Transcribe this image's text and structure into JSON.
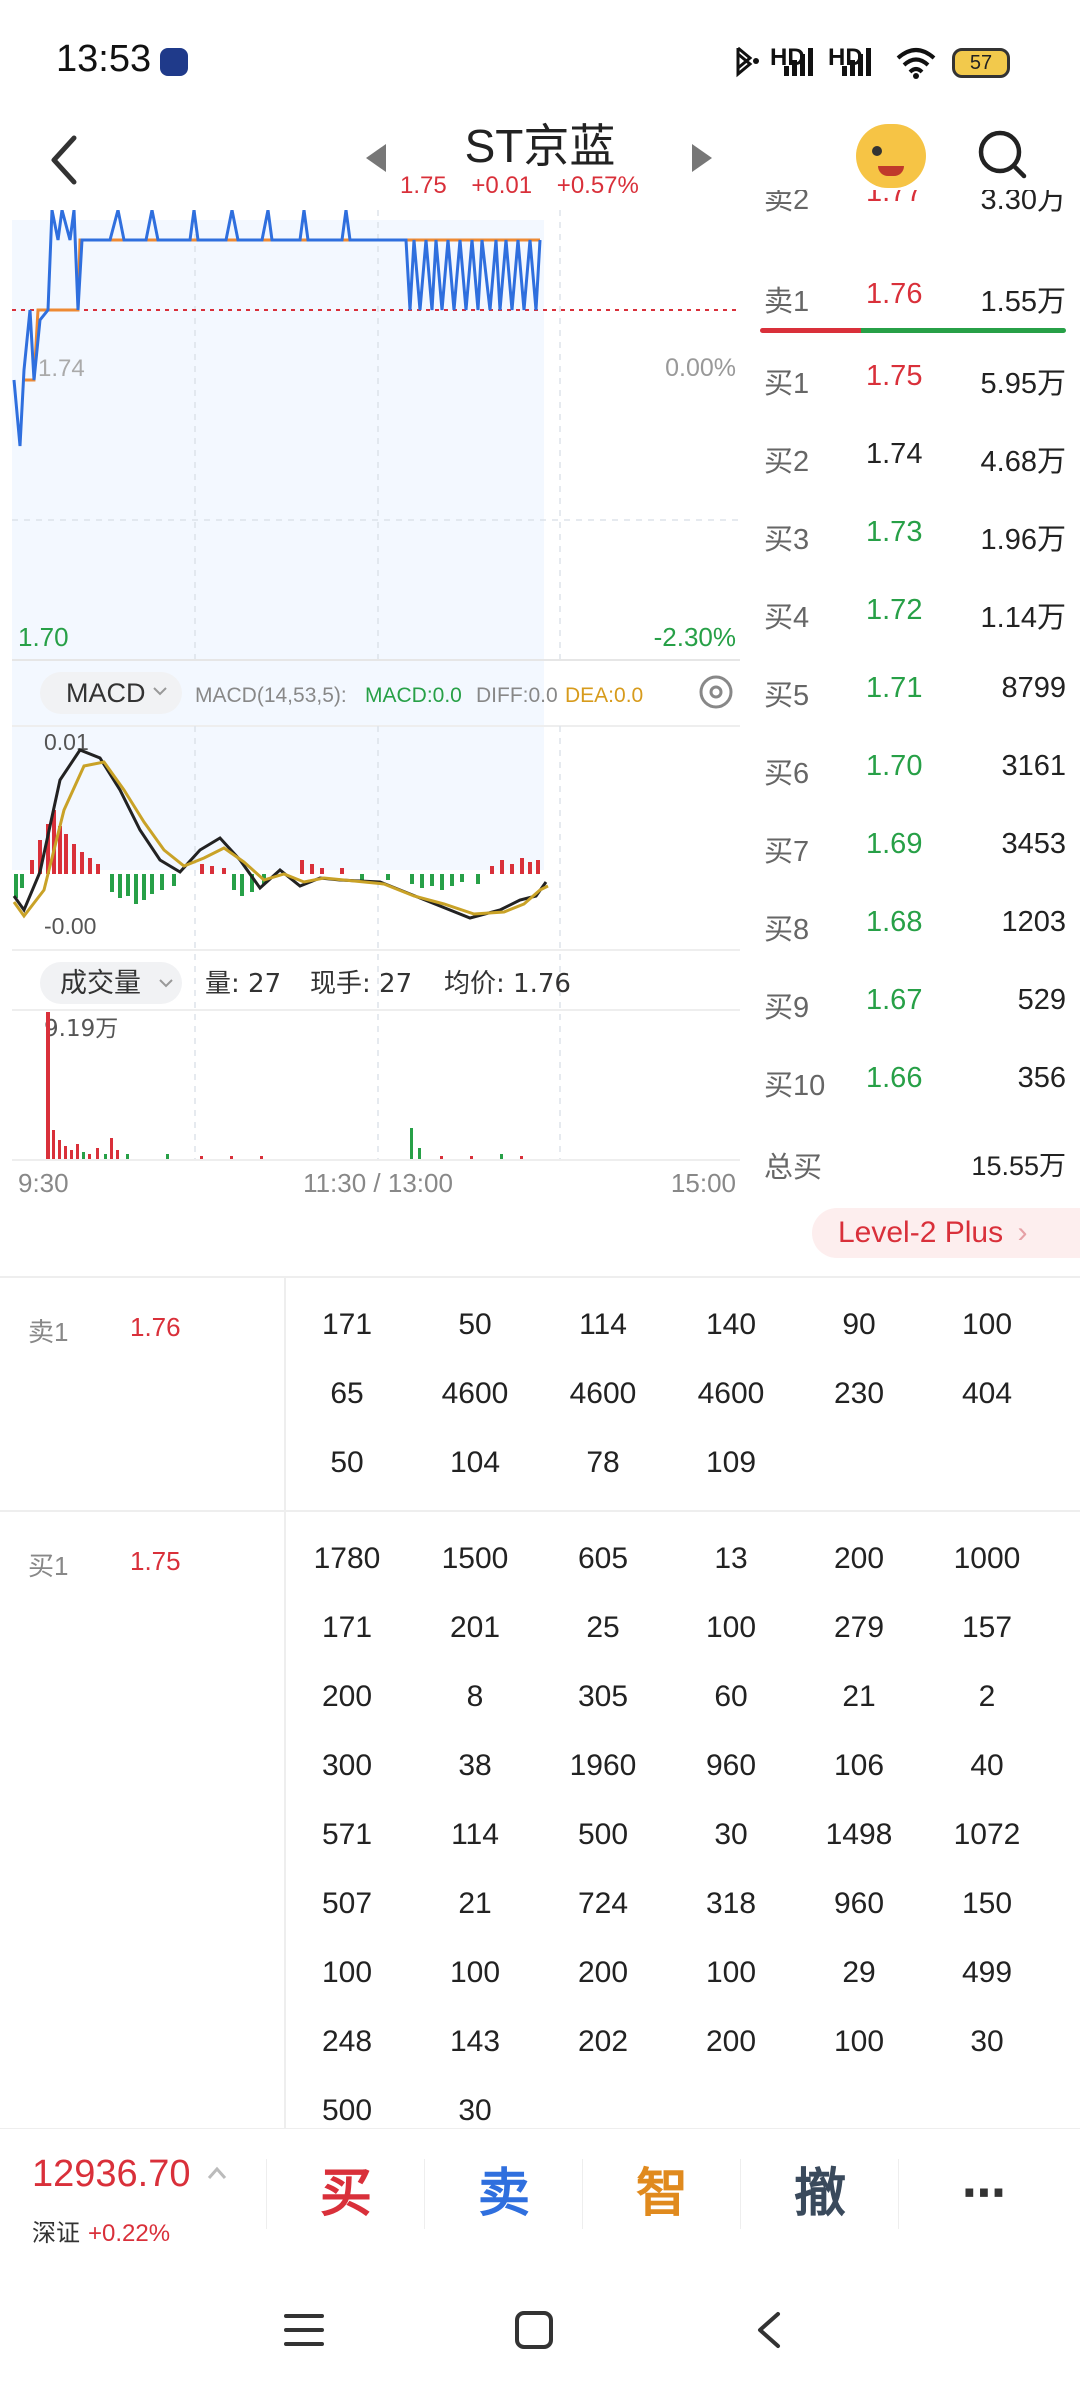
{
  "status_bar": {
    "time": "13:53",
    "network_1": "HD",
    "network_2": "HD",
    "battery": "57"
  },
  "header": {
    "title": "ST京蓝",
    "price": "1.75",
    "change": "+0.01",
    "change_pct": "+0.57%"
  },
  "chart": {
    "price_axis_low": "1.70",
    "price_axis_mid": "1.74",
    "pct_mid": "0.00%",
    "pct_low": "-2.30%",
    "macd": {
      "selector": "MACD",
      "params": "MACD(14,53,5):",
      "macd": "MACD:0.0",
      "diff": "DIFF:0.0",
      "dea": "DEA:0.0",
      "top": "0.01",
      "bottom": "-0.00"
    },
    "volume": {
      "selector": "成交量",
      "qty": "量: 27",
      "hand": "现手: 27",
      "avg": "均价: 1.76",
      "max": "9.19万"
    },
    "time_axis": [
      "9:30",
      "11:30 / 13:00",
      "15:00"
    ]
  },
  "chart_data": {
    "type": "line",
    "x": [
      "9:30",
      "11:30 / 13:00",
      "15:00"
    ],
    "series": [],
    "ylim": [
      1.7,
      1.77
    ],
    "prev_close": 1.74
  },
  "order_book": {
    "partial_top": {
      "label": "卖2",
      "price": "1.77",
      "vol": "3.30万"
    },
    "ask1": {
      "label": "卖1",
      "price": "1.76",
      "vol": "1.55万"
    },
    "bids": [
      {
        "label": "买1",
        "price": "1.75",
        "vol": "5.95万",
        "color": "#d9303a"
      },
      {
        "label": "买2",
        "price": "1.74",
        "vol": "4.68万",
        "color": "#222222"
      },
      {
        "label": "买3",
        "price": "1.73",
        "vol": "1.96万",
        "color": "#27a047"
      },
      {
        "label": "买4",
        "price": "1.72",
        "vol": "1.14万",
        "color": "#27a047"
      },
      {
        "label": "买5",
        "price": "1.71",
        "vol": "8799",
        "color": "#27a047"
      },
      {
        "label": "买6",
        "price": "1.70",
        "vol": "3161",
        "color": "#27a047"
      },
      {
        "label": "买7",
        "price": "1.69",
        "vol": "3453",
        "color": "#27a047"
      },
      {
        "label": "买8",
        "price": "1.68",
        "vol": "1203",
        "color": "#27a047"
      },
      {
        "label": "买9",
        "price": "1.67",
        "vol": "529",
        "color": "#27a047"
      },
      {
        "label": "买10",
        "price": "1.66",
        "vol": "356",
        "color": "#27a047"
      }
    ],
    "total_buy": {
      "label": "总买",
      "vol": "15.55万"
    },
    "level2": "Level-2 Plus"
  },
  "sell_queue": {
    "label": "卖1",
    "price": "1.76",
    "rows": [
      [
        "171",
        "50",
        "114",
        "140",
        "90",
        "100"
      ],
      [
        "65",
        "4600",
        "4600",
        "4600",
        "230",
        "404"
      ],
      [
        "50",
        "104",
        "78",
        "109"
      ]
    ]
  },
  "buy_queue": {
    "label": "买1",
    "price": "1.75",
    "rows": [
      [
        "1780",
        "1500",
        "605",
        "13",
        "200",
        "1000"
      ],
      [
        "171",
        "201",
        "25",
        "100",
        "279",
        "157"
      ],
      [
        "200",
        "8",
        "305",
        "60",
        "21",
        "2"
      ],
      [
        "300",
        "38",
        "1960",
        "960",
        "106",
        "40"
      ],
      [
        "571",
        "114",
        "500",
        "30",
        "1498",
        "1072"
      ],
      [
        "507",
        "21",
        "724",
        "318",
        "960",
        "150"
      ],
      [
        "100",
        "100",
        "200",
        "100",
        "29",
        "499"
      ],
      [
        "248",
        "143",
        "202",
        "200",
        "100",
        "30"
      ],
      [
        "500",
        "30"
      ]
    ]
  },
  "bottom_bar": {
    "index_value": "12936.70",
    "index_name": "深证",
    "index_change": "+0.22%",
    "buy": "买",
    "sell": "卖",
    "smart": "智",
    "cancel": "撤",
    "more": "⋯"
  },
  "colors": {
    "red": "#d9303a",
    "green": "#27a047",
    "blue": "#2f6fde",
    "orange": "#e08a1e"
  }
}
